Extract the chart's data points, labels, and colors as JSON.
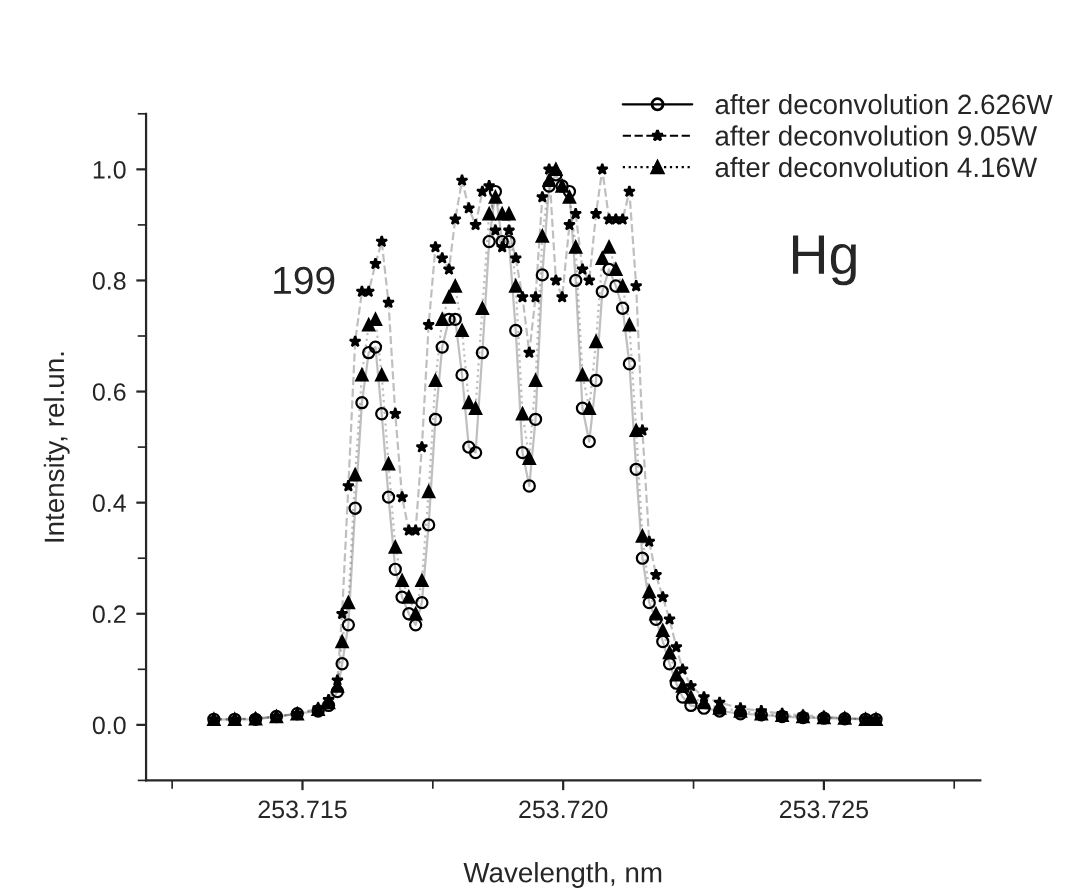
{
  "chart_data": {
    "type": "line",
    "xlabel": "Wavelength, nm",
    "ylabel": "Intensity, rel.un.",
    "annotations": [
      "199",
      "Hg"
    ],
    "x": [
      253.7133,
      253.7137,
      253.7141,
      253.7145,
      253.7149,
      253.7153,
      253.7155,
      253.71567,
      253.71576,
      253.71588,
      253.71601,
      253.71614,
      253.71627,
      253.7164,
      253.71652,
      253.71665,
      253.71678,
      253.71691,
      253.71704,
      253.71717,
      253.71729,
      253.71742,
      253.71755,
      253.71768,
      253.71781,
      253.71793,
      253.71806,
      253.71819,
      253.71832,
      253.71845,
      253.71858,
      253.7187,
      253.71883,
      253.71896,
      253.71909,
      253.71922,
      253.71935,
      253.71947,
      253.7196,
      253.71973,
      253.71986,
      253.71998,
      253.72012,
      253.72024,
      253.72037,
      253.7205,
      253.72063,
      253.72075,
      253.72088,
      253.72101,
      253.72114,
      253.72127,
      253.7214,
      253.72152,
      253.72165,
      253.72178,
      253.72191,
      253.72204,
      253.72217,
      253.72229,
      253.72245,
      253.7227,
      253.723,
      253.7234,
      253.7238,
      253.7242,
      253.7246,
      253.725,
      253.7254,
      253.7258,
      253.726
    ],
    "series": [
      {
        "name": "after deconvolution 2.626W",
        "color": "#000000",
        "marker": "circle",
        "line_style": "solid",
        "values": [
          0.01,
          0.01,
          0.01,
          0.015,
          0.02,
          0.025,
          0.035,
          0.06,
          0.11,
          0.18,
          0.39,
          0.58,
          0.67,
          0.68,
          0.56,
          0.41,
          0.28,
          0.23,
          0.2,
          0.18,
          0.22,
          0.36,
          0.55,
          0.68,
          0.73,
          0.73,
          0.63,
          0.5,
          0.49,
          0.67,
          0.87,
          0.96,
          0.87,
          0.87,
          0.71,
          0.49,
          0.43,
          0.55,
          0.81,
          0.97,
          0.99,
          0.97,
          0.96,
          0.8,
          0.57,
          0.51,
          0.62,
          0.78,
          0.82,
          0.79,
          0.75,
          0.65,
          0.46,
          0.3,
          0.22,
          0.19,
          0.15,
          0.11,
          0.075,
          0.05,
          0.035,
          0.03,
          0.025,
          0.02,
          0.018,
          0.015,
          0.013,
          0.012,
          0.011,
          0.01,
          0.01
        ]
      },
      {
        "name": "after deconvolution 9.05W",
        "color": "#000000",
        "marker": "star",
        "line_style": "dashed",
        "values": [
          0.01,
          0.01,
          0.012,
          0.015,
          0.02,
          0.03,
          0.045,
          0.08,
          0.2,
          0.43,
          0.69,
          0.78,
          0.78,
          0.83,
          0.87,
          0.76,
          0.56,
          0.41,
          0.35,
          0.35,
          0.5,
          0.72,
          0.86,
          0.84,
          0.82,
          0.91,
          0.98,
          0.93,
          0.9,
          0.96,
          0.97,
          0.89,
          0.86,
          0.89,
          0.84,
          0.77,
          0.67,
          0.77,
          0.95,
          1.0,
          0.8,
          0.77,
          0.9,
          0.92,
          0.82,
          0.8,
          0.92,
          1.0,
          0.91,
          0.91,
          0.91,
          0.96,
          0.79,
          0.53,
          0.33,
          0.27,
          0.23,
          0.19,
          0.14,
          0.1,
          0.07,
          0.05,
          0.04,
          0.03,
          0.025,
          0.02,
          0.017,
          0.015,
          0.012,
          0.011,
          0.01
        ]
      },
      {
        "name": "after deconvolution 4.16W",
        "color": "#000000",
        "marker": "triangle",
        "line_style": "dotted",
        "values": [
          0.01,
          0.01,
          0.011,
          0.015,
          0.02,
          0.028,
          0.04,
          0.07,
          0.15,
          0.22,
          0.45,
          0.63,
          0.72,
          0.73,
          0.63,
          0.47,
          0.32,
          0.26,
          0.23,
          0.2,
          0.26,
          0.42,
          0.62,
          0.73,
          0.77,
          0.79,
          0.71,
          0.58,
          0.57,
          0.75,
          0.92,
          0.95,
          0.92,
          0.92,
          0.79,
          0.56,
          0.48,
          0.62,
          0.88,
          0.98,
          1.0,
          0.97,
          0.95,
          0.86,
          0.63,
          0.57,
          0.69,
          0.84,
          0.86,
          0.82,
          0.79,
          0.72,
          0.53,
          0.34,
          0.24,
          0.2,
          0.17,
          0.13,
          0.09,
          0.07,
          0.05,
          0.04,
          0.03,
          0.025,
          0.02,
          0.017,
          0.015,
          0.013,
          0.012,
          0.01,
          0.01
        ]
      }
    ],
    "xlim": [
      253.712,
      253.728
    ],
    "xticks": [
      {
        "value": 253.715,
        "label": "253.715"
      },
      {
        "value": 253.72,
        "label": "253.720"
      },
      {
        "value": 253.725,
        "label": "253.725"
      }
    ],
    "ylim": [
      -0.1,
      1.1
    ],
    "yticks": [
      {
        "value": 0,
        "label": "0.0"
      },
      {
        "value": 0.2,
        "label": "0.2"
      },
      {
        "value": 0.4,
        "label": "0.4"
      },
      {
        "value": 0.6,
        "label": "0.6"
      },
      {
        "value": 0.8,
        "label": "0.8"
      },
      {
        "value": 1,
        "label": "1.0"
      }
    ],
    "grid": false,
    "legend": "top right"
  }
}
